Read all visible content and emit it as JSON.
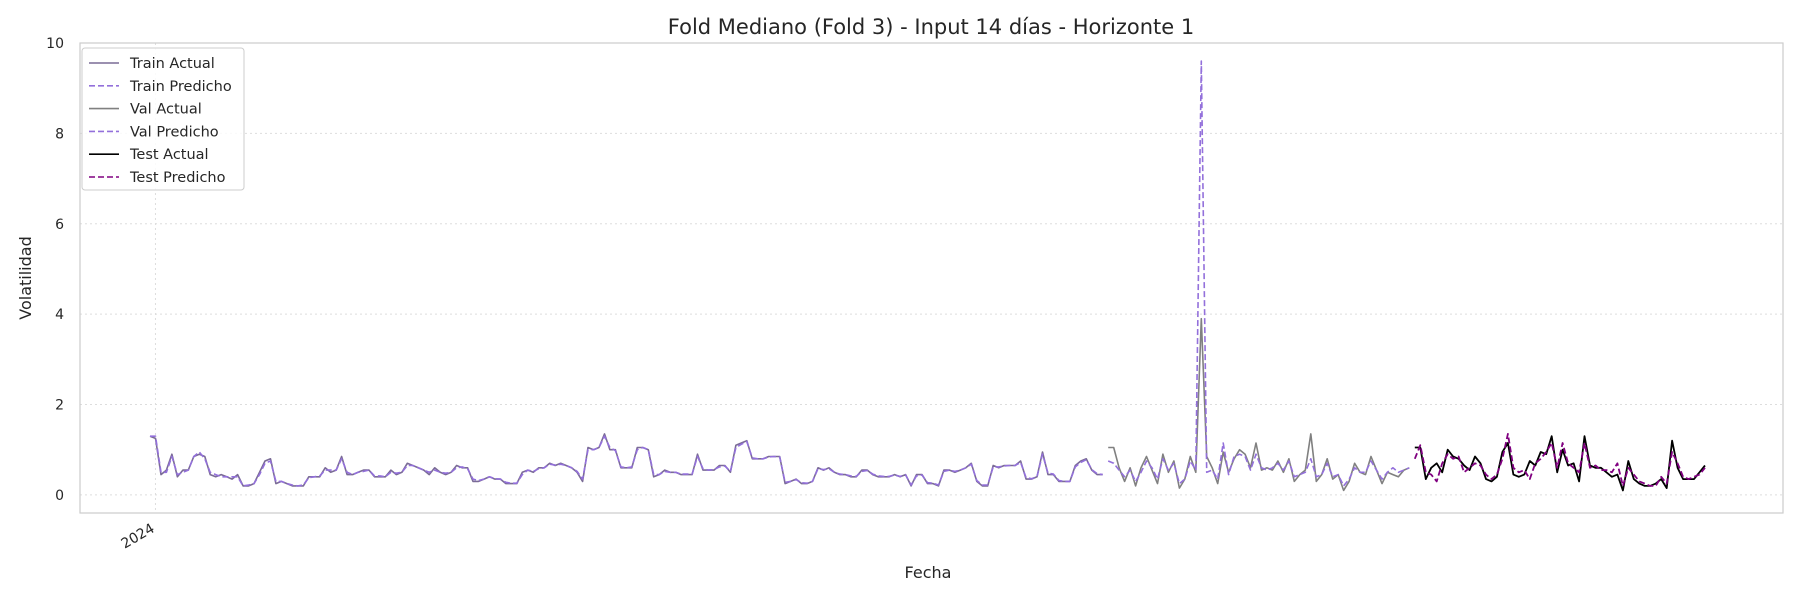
{
  "chart_data": {
    "type": "line",
    "title": "Fold Mediano (Fold 3) - Input 14 días - Horizonte 1",
    "xlabel": "Fecha",
    "ylabel": "Volatilidad",
    "ylim": [
      -0.4,
      10
    ],
    "yticks": [
      0,
      2,
      4,
      6,
      8,
      10
    ],
    "x_tick_labels": [
      "2024"
    ],
    "grid": true,
    "legend_position": "top-left",
    "colors": {
      "train_actual": "#7a6b96",
      "train_pred": "#9370db",
      "val_actual": "#808080",
      "val_pred": "#9370db",
      "test_actual": "#000000",
      "test_pred": "#800080"
    },
    "series": [
      {
        "name": "Train Actual",
        "key": "train_actual",
        "style": "solid",
        "values": [
          1.3,
          1.25,
          0.45,
          0.55,
          0.9,
          0.4,
          0.55,
          0.55,
          0.85,
          0.9,
          0.85,
          0.45,
          0.4,
          0.45,
          0.4,
          0.35,
          0.45,
          0.2,
          0.2,
          0.25,
          0.5,
          0.75,
          0.8,
          0.25,
          0.3,
          0.25,
          0.2,
          0.2,
          0.2,
          0.4,
          0.4,
          0.4,
          0.6,
          0.5,
          0.55,
          0.85,
          0.45,
          0.45,
          0.5,
          0.55,
          0.55,
          0.4,
          0.4,
          0.4,
          0.55,
          0.45,
          0.5,
          0.7,
          0.65,
          0.6,
          0.55,
          0.45,
          0.6,
          0.5,
          0.45,
          0.5,
          0.65,
          0.6,
          0.6,
          0.3,
          0.3,
          0.35,
          0.4,
          0.35,
          0.35,
          0.25,
          0.25,
          0.25,
          0.5,
          0.55,
          0.5,
          0.6,
          0.6,
          0.7,
          0.65,
          0.7,
          0.65,
          0.6,
          0.5,
          0.3,
          1.05,
          1.0,
          1.05,
          1.35,
          1.0,
          1.0,
          0.6,
          0.6,
          0.6,
          1.05,
          1.05,
          1.0,
          0.4,
          0.45,
          0.55,
          0.5,
          0.5,
          0.45,
          0.45,
          0.45,
          0.9,
          0.55,
          0.55,
          0.55,
          0.65,
          0.65,
          0.5,
          1.1,
          1.15,
          1.2,
          0.8,
          0.8,
          0.8,
          0.85,
          0.85,
          0.85,
          0.25,
          0.3,
          0.35,
          0.25,
          0.25,
          0.3,
          0.6,
          0.55,
          0.6,
          0.5,
          0.45,
          0.45,
          0.4,
          0.4,
          0.55,
          0.55,
          0.45,
          0.4,
          0.4,
          0.4,
          0.45,
          0.4,
          0.45,
          0.2,
          0.45,
          0.45,
          0.25,
          0.25,
          0.2,
          0.55,
          0.55,
          0.5,
          0.55,
          0.6,
          0.7,
          0.3,
          0.2,
          0.2,
          0.65,
          0.6,
          0.65,
          0.65,
          0.65,
          0.75,
          0.35,
          0.35,
          0.4,
          0.95,
          0.45,
          0.45,
          0.3,
          0.3,
          0.3,
          0.65,
          0.75,
          0.8,
          0.55,
          0.45,
          0.45
        ]
      },
      {
        "name": "Train Predicho",
        "key": "train_pred",
        "style": "dashed",
        "values": [
          1.3,
          1.3,
          0.5,
          0.5,
          0.85,
          0.45,
          0.5,
          0.55,
          0.85,
          0.95,
          0.8,
          0.5,
          0.45,
          0.4,
          0.4,
          0.4,
          0.4,
          0.2,
          0.22,
          0.25,
          0.45,
          0.7,
          0.75,
          0.3,
          0.3,
          0.25,
          0.22,
          0.2,
          0.22,
          0.38,
          0.4,
          0.42,
          0.55,
          0.55,
          0.55,
          0.8,
          0.5,
          0.45,
          0.5,
          0.52,
          0.55,
          0.42,
          0.42,
          0.4,
          0.5,
          0.48,
          0.5,
          0.65,
          0.65,
          0.6,
          0.55,
          0.5,
          0.55,
          0.5,
          0.48,
          0.5,
          0.6,
          0.62,
          0.58,
          0.35,
          0.32,
          0.35,
          0.4,
          0.36,
          0.35,
          0.28,
          0.26,
          0.26,
          0.45,
          0.55,
          0.52,
          0.58,
          0.6,
          0.68,
          0.66,
          0.68,
          0.65,
          0.6,
          0.52,
          0.35,
          1.0,
          1.0,
          1.05,
          1.3,
          1.05,
          0.98,
          0.62,
          0.6,
          0.62,
          1.0,
          1.05,
          1.0,
          0.45,
          0.45,
          0.52,
          0.5,
          0.5,
          0.46,
          0.46,
          0.46,
          0.85,
          0.58,
          0.55,
          0.56,
          0.62,
          0.64,
          0.52,
          1.05,
          1.12,
          1.18,
          0.82,
          0.8,
          0.8,
          0.84,
          0.85,
          0.84,
          0.28,
          0.3,
          0.34,
          0.27,
          0.26,
          0.3,
          0.58,
          0.56,
          0.58,
          0.5,
          0.46,
          0.45,
          0.42,
          0.41,
          0.52,
          0.54,
          0.46,
          0.42,
          0.41,
          0.41,
          0.44,
          0.41,
          0.44,
          0.22,
          0.42,
          0.44,
          0.27,
          0.26,
          0.22,
          0.52,
          0.55,
          0.52,
          0.55,
          0.6,
          0.68,
          0.32,
          0.22,
          0.22,
          0.62,
          0.62,
          0.64,
          0.65,
          0.65,
          0.72,
          0.38,
          0.36,
          0.4,
          0.9,
          0.48,
          0.46,
          0.32,
          0.3,
          0.3,
          0.62,
          0.72,
          0.78,
          0.56,
          0.47,
          0.45
        ]
      },
      {
        "name": "Val Actual",
        "key": "val_actual",
        "style": "solid",
        "values": [
          1.05,
          1.05,
          0.6,
          0.3,
          0.6,
          0.2,
          0.6,
          0.85,
          0.55,
          0.25,
          0.9,
          0.5,
          0.75,
          0.15,
          0.35,
          0.85,
          0.5,
          3.9,
          0.85,
          0.6,
          0.25,
          0.95,
          0.5,
          0.8,
          1.0,
          0.9,
          0.6,
          1.15,
          0.55,
          0.6,
          0.55,
          0.75,
          0.5,
          0.8,
          0.3,
          0.45,
          0.55,
          1.35,
          0.3,
          0.45,
          0.8,
          0.35,
          0.45,
          0.1,
          0.3,
          0.7,
          0.5,
          0.45,
          0.85,
          0.55,
          0.25,
          0.5,
          0.45,
          0.4,
          0.55,
          0.6
        ]
      },
      {
        "name": "Val Predicho",
        "key": "val_pred",
        "style": "dashed",
        "values": [
          0.75,
          0.7,
          0.55,
          0.4,
          0.55,
          0.3,
          0.5,
          0.75,
          0.6,
          0.35,
          0.8,
          0.55,
          0.7,
          0.25,
          0.35,
          0.75,
          0.55,
          9.6,
          0.5,
          0.55,
          0.35,
          1.15,
          0.45,
          0.85,
          0.9,
          0.85,
          0.55,
          0.9,
          0.6,
          0.55,
          0.6,
          0.7,
          0.55,
          0.75,
          0.4,
          0.45,
          0.5,
          0.8,
          0.4,
          0.45,
          0.7,
          0.4,
          0.45,
          0.2,
          0.35,
          0.6,
          0.5,
          0.5,
          0.75,
          0.55,
          0.35,
          0.5,
          0.6,
          0.5,
          0.55,
          0.6
        ]
      },
      {
        "name": "Test Actual",
        "key": "test_actual",
        "style": "solid",
        "values": [
          1.05,
          1.05,
          0.35,
          0.6,
          0.7,
          0.5,
          1.0,
          0.85,
          0.8,
          0.65,
          0.55,
          0.85,
          0.7,
          0.35,
          0.3,
          0.4,
          0.95,
          1.15,
          0.45,
          0.4,
          0.45,
          0.75,
          0.65,
          0.95,
          0.9,
          1.3,
          0.5,
          1.0,
          0.65,
          0.7,
          0.3,
          1.3,
          0.65,
          0.6,
          0.6,
          0.5,
          0.4,
          0.45,
          0.1,
          0.75,
          0.35,
          0.25,
          0.2,
          0.2,
          0.25,
          0.35,
          0.15,
          1.2,
          0.6,
          0.35,
          0.35,
          0.35,
          0.5,
          0.65
        ]
      },
      {
        "name": "Test Predicho",
        "key": "test_pred",
        "style": "dashed",
        "values": [
          0.8,
          1.1,
          0.5,
          0.45,
          0.3,
          0.7,
          0.9,
          0.8,
          0.85,
          0.5,
          0.6,
          0.7,
          0.65,
          0.45,
          0.35,
          0.45,
          0.8,
          1.35,
          0.6,
          0.5,
          0.55,
          0.35,
          0.7,
          0.8,
          0.95,
          1.15,
          0.6,
          1.15,
          0.7,
          0.6,
          0.5,
          1.15,
          0.6,
          0.65,
          0.55,
          0.55,
          0.5,
          0.7,
          0.2,
          0.6,
          0.45,
          0.3,
          0.25,
          0.2,
          0.2,
          0.4,
          0.25,
          0.95,
          0.7,
          0.4,
          0.35,
          0.4,
          0.45,
          0.6
        ]
      }
    ]
  }
}
